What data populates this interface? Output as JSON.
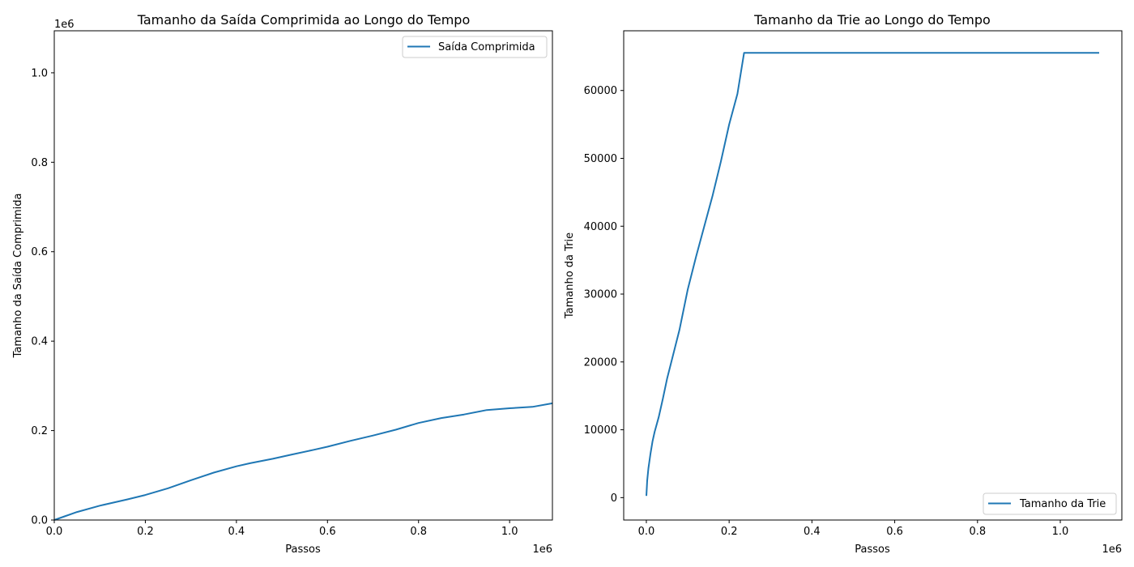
{
  "chart_data": [
    {
      "type": "line",
      "title": "Tamanho da Saída Comprimida ao Longo do Tempo",
      "xlabel": "Passos",
      "ylabel": "Tamanho da Saída Comprimida",
      "x_offset_label": "1e6",
      "y_offset_label": "1e6",
      "xlim": [
        0,
        1094000
      ],
      "ylim": [
        0,
        1094000
      ],
      "grid": false,
      "legend_position": "upper right",
      "x_ticks": [
        0,
        200000,
        400000,
        600000,
        800000,
        1000000
      ],
      "x_tick_labels": [
        "0.0",
        "0.2",
        "0.4",
        "0.6",
        "0.8",
        "1.0"
      ],
      "y_ticks": [
        0,
        200000,
        400000,
        600000,
        800000,
        1000000
      ],
      "y_tick_labels": [
        "0.0",
        "0.2",
        "0.4",
        "0.6",
        "0.8",
        "1.0"
      ],
      "series": [
        {
          "name": "Saída Comprimida",
          "color": "#1f77b4",
          "x": [
            0,
            25000,
            50000,
            100000,
            160000,
            200000,
            250000,
            300000,
            350000,
            400000,
            430000,
            480000,
            520000,
            570000,
            600000,
            650000,
            700000,
            750000,
            800000,
            850000,
            900000,
            950000,
            1000000,
            1050000,
            1094000
          ],
          "y": [
            0,
            9000,
            18000,
            32000,
            46000,
            56000,
            71000,
            89000,
            106000,
            120000,
            127000,
            137000,
            146000,
            157000,
            164000,
            177000,
            189000,
            202000,
            217000,
            228000,
            236000,
            246000,
            250000,
            253000,
            261000
          ]
        }
      ]
    },
    {
      "type": "line",
      "title": "Tamanho da Trie ao Longo do Tempo",
      "xlabel": "Passos",
      "ylabel": "Tamanho da Trie",
      "x_offset_label": "1e6",
      "xlim": [
        -54700,
        1148700
      ],
      "ylim": [
        -3300,
        68800
      ],
      "grid": false,
      "legend_position": "lower right",
      "x_ticks": [
        0,
        200000,
        400000,
        600000,
        800000,
        1000000
      ],
      "x_tick_labels": [
        "0.0",
        "0.2",
        "0.4",
        "0.6",
        "0.8",
        "1.0"
      ],
      "y_ticks": [
        0,
        10000,
        20000,
        30000,
        40000,
        50000,
        60000
      ],
      "y_tick_labels": [
        "0",
        "10000",
        "20000",
        "30000",
        "40000",
        "50000",
        "60000"
      ],
      "series": [
        {
          "name": "Tamanho da Trie",
          "color": "#1f77b4",
          "x": [
            0,
            2000,
            5000,
            10000,
            15000,
            20000,
            30000,
            40000,
            50000,
            60000,
            80000,
            100000,
            120000,
            140000,
            160000,
            180000,
            200000,
            220000,
            236000,
            1094000
          ],
          "y": [
            256,
            2500,
            4300,
            6500,
            8300,
            9700,
            11900,
            14600,
            17500,
            19900,
            24700,
            30700,
            35500,
            40000,
            44500,
            49500,
            55000,
            59500,
            65536,
            65536
          ]
        }
      ]
    }
  ]
}
